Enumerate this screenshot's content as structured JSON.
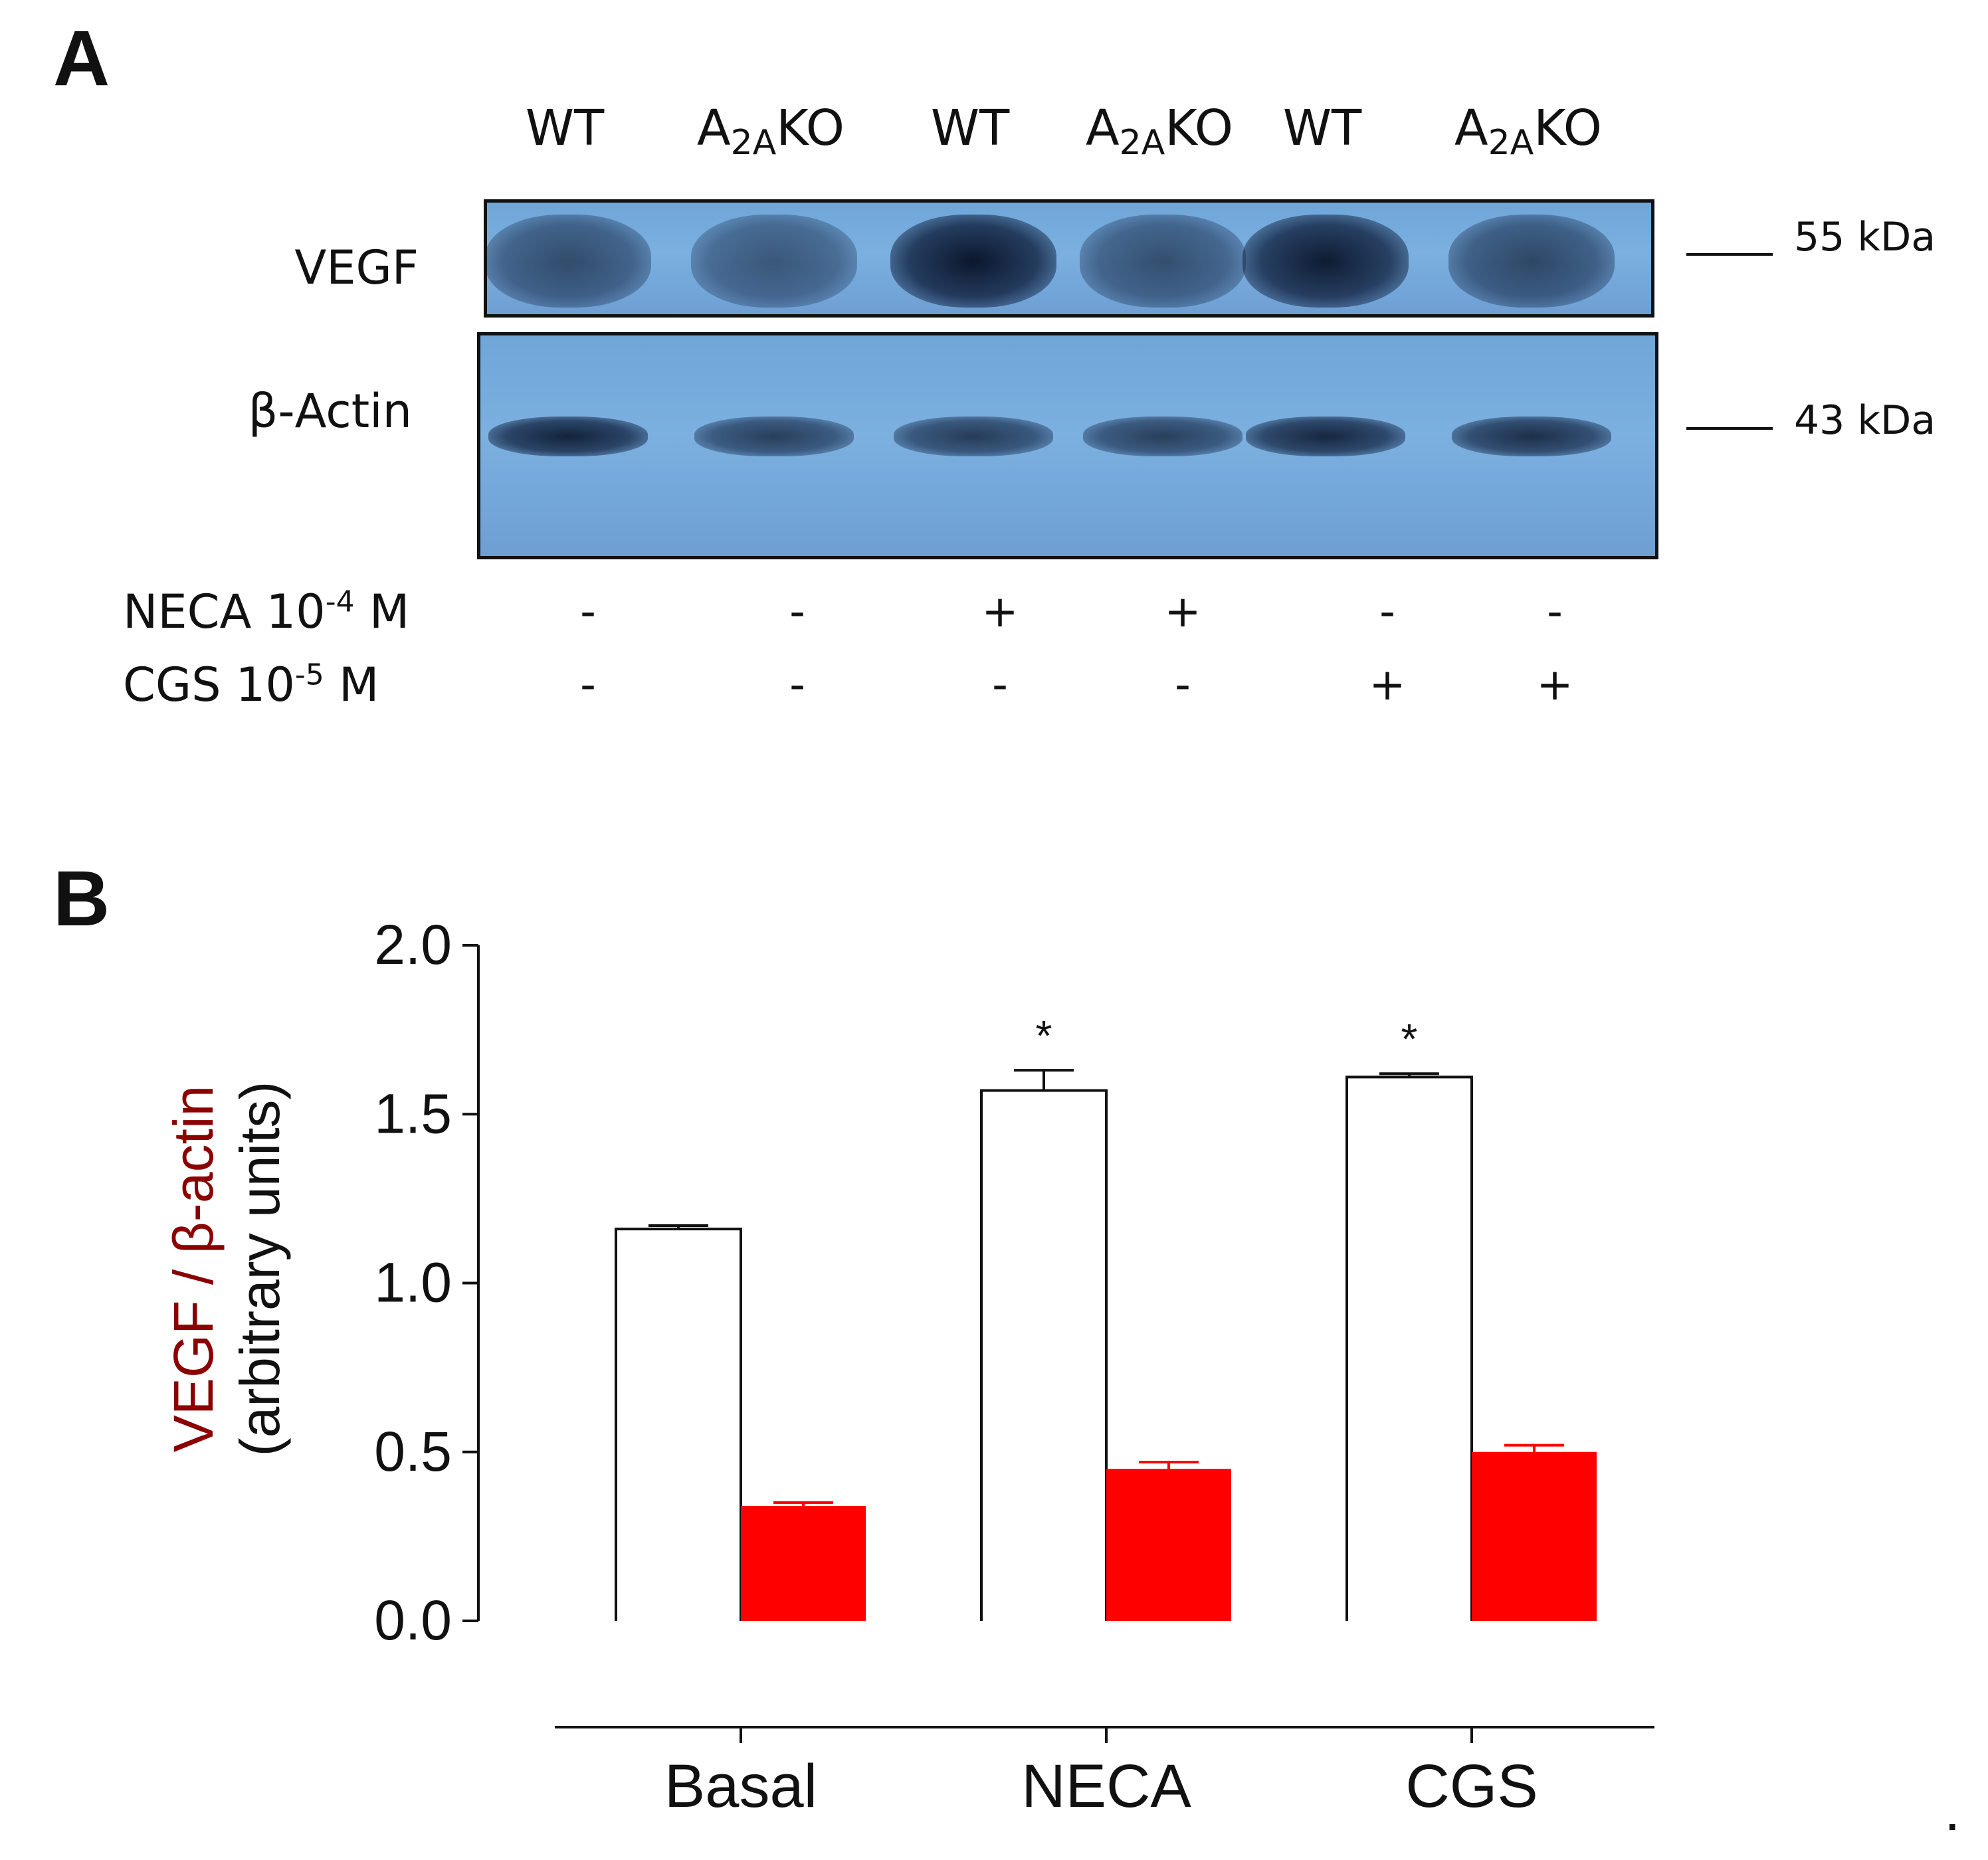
{
  "panel_a": {
    "letter": "A",
    "lanes": [
      {
        "main": "WT",
        "sub": "",
        "tail": ""
      },
      {
        "main": "A",
        "sub": "2A",
        "tail": "KO"
      },
      {
        "main": "WT",
        "sub": "",
        "tail": ""
      },
      {
        "main": "A",
        "sub": "2A",
        "tail": "KO"
      },
      {
        "main": "WT",
        "sub": "",
        "tail": ""
      },
      {
        "main": "A",
        "sub": "2A",
        "tail": "KO"
      }
    ],
    "row_labels": {
      "vegf": "VEGF",
      "actin": "β-Actin"
    },
    "mw_markers": {
      "vegf": "55 kDa",
      "actin": "43 kDa"
    },
    "treatments": [
      {
        "name": "NECA 10",
        "exponent": "-4",
        "unit": "M",
        "signs": [
          "-",
          "-",
          "+",
          "+",
          "-",
          "-"
        ]
      },
      {
        "name": "CGS  10",
        "exponent": "-5",
        "unit": "M",
        "signs": [
          "-",
          "-",
          "-",
          "-",
          "+",
          "+"
        ]
      }
    ],
    "band_intensities": {
      "vegf": [
        0.62,
        0.55,
        0.95,
        0.6,
        0.92,
        0.65
      ],
      "actin": [
        0.88,
        0.7,
        0.72,
        0.7,
        0.85,
        0.8
      ]
    }
  },
  "panel_b": {
    "letter": "B",
    "trailing_mark": "."
  },
  "chart_data": {
    "type": "bar",
    "categories": [
      "Basal",
      "NECA",
      "CGS"
    ],
    "series": [
      {
        "name": "WT",
        "color": "#ffffff",
        "values": [
          1.16,
          1.57,
          1.61
        ],
        "errors": [
          0.01,
          0.06,
          0.01
        ]
      },
      {
        "name": "A2AKO",
        "color": "#ff0000",
        "values": [
          0.34,
          0.45,
          0.5
        ],
        "errors": [
          0.01,
          0.02,
          0.02
        ]
      }
    ],
    "title": "",
    "xlabel": "",
    "ylabel": [
      "VEGF / β-actin",
      "(arbitrary units)"
    ],
    "ylabel_color": "#8b0000",
    "ylim": [
      0,
      2.0
    ],
    "yticks": [
      "0.0",
      "0.5",
      "1.0",
      "1.5",
      "2.0"
    ],
    "ytick_values": [
      0,
      0.5,
      1.0,
      1.5,
      2.0
    ],
    "significance": [
      "",
      "*",
      "*"
    ],
    "legend": "none",
    "grid": false
  }
}
